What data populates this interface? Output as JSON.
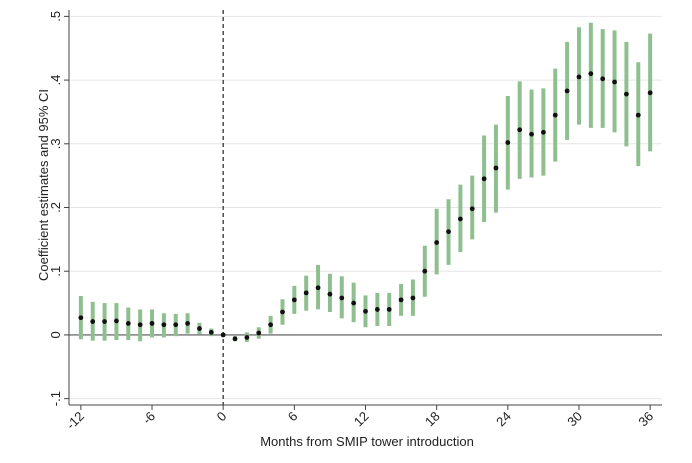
{
  "chart_data": {
    "type": "scatter",
    "title": "",
    "xlabel": "Months from SMIP tower introduction",
    "ylabel": "Coefficient estimates and 95% CI",
    "xlim": [
      -13,
      37
    ],
    "ylim": [
      -0.11,
      0.51
    ],
    "xticks": [
      -12,
      -6,
      0,
      6,
      12,
      18,
      24,
      30,
      36
    ],
    "xtick_labels": [
      "-12",
      "-6",
      "0",
      "6",
      "12",
      "18",
      "24",
      "30",
      "36"
    ],
    "yticks": [
      -0.1,
      0,
      0.1,
      0.2,
      0.3,
      0.4,
      0.5
    ],
    "ytick_labels": [
      "-.1",
      "0",
      ".1",
      ".2",
      ".3",
      ".4",
      ".5"
    ],
    "grid": true,
    "reference_lines": {
      "horizontal": 0,
      "vertical_dashed": 0
    },
    "colors": {
      "ci": "#8fbf8f",
      "point": "#111111",
      "grid": "#e6e6e6",
      "axis": "#444444"
    },
    "series": [
      {
        "name": "Coefficient estimates and 95% CI",
        "x": [
          -12,
          -11,
          -10,
          -9,
          -8,
          -7,
          -6,
          -5,
          -4,
          -3,
          -2,
          -1,
          0,
          1,
          2,
          3,
          4,
          5,
          6,
          7,
          8,
          9,
          10,
          11,
          12,
          13,
          14,
          15,
          16,
          17,
          18,
          19,
          20,
          21,
          22,
          23,
          24,
          25,
          26,
          27,
          28,
          29,
          30,
          31,
          32,
          33,
          34,
          35,
          36
        ],
        "estimate": [
          0.027,
          0.021,
          0.021,
          0.022,
          0.018,
          0.016,
          0.018,
          0.016,
          0.016,
          0.018,
          0.01,
          0.004,
          0.0,
          -0.006,
          -0.004,
          0.003,
          0.016,
          0.036,
          0.055,
          0.066,
          0.074,
          0.064,
          0.058,
          0.05,
          0.037,
          0.04,
          0.04,
          0.055,
          0.058,
          0.1,
          0.145,
          0.162,
          0.182,
          0.198,
          0.245,
          0.262,
          0.302,
          0.322,
          0.315,
          0.318,
          0.345,
          0.383,
          0.405,
          0.41,
          0.402,
          0.397,
          0.378,
          0.345,
          0.38
        ],
        "ci_lower": [
          -0.007,
          -0.009,
          -0.009,
          -0.008,
          -0.008,
          -0.01,
          -0.004,
          -0.004,
          -0.002,
          0.002,
          0.001,
          -0.002,
          -0.003,
          -0.01,
          -0.011,
          -0.006,
          0.002,
          0.016,
          0.033,
          0.038,
          0.04,
          0.036,
          0.026,
          0.02,
          0.012,
          0.014,
          0.014,
          0.03,
          0.03,
          0.06,
          0.095,
          0.11,
          0.13,
          0.15,
          0.177,
          0.192,
          0.228,
          0.245,
          0.247,
          0.25,
          0.272,
          0.306,
          0.33,
          0.325,
          0.325,
          0.318,
          0.296,
          0.265,
          0.288
        ],
        "ci_upper": [
          0.061,
          0.052,
          0.05,
          0.05,
          0.043,
          0.04,
          0.04,
          0.034,
          0.033,
          0.034,
          0.019,
          0.01,
          0.003,
          -0.002,
          0.004,
          0.012,
          0.03,
          0.056,
          0.077,
          0.093,
          0.11,
          0.096,
          0.092,
          0.082,
          0.062,
          0.066,
          0.066,
          0.08,
          0.087,
          0.14,
          0.198,
          0.213,
          0.236,
          0.25,
          0.313,
          0.33,
          0.375,
          0.398,
          0.385,
          0.387,
          0.418,
          0.46,
          0.483,
          0.49,
          0.48,
          0.478,
          0.46,
          0.428,
          0.473
        ]
      }
    ]
  }
}
